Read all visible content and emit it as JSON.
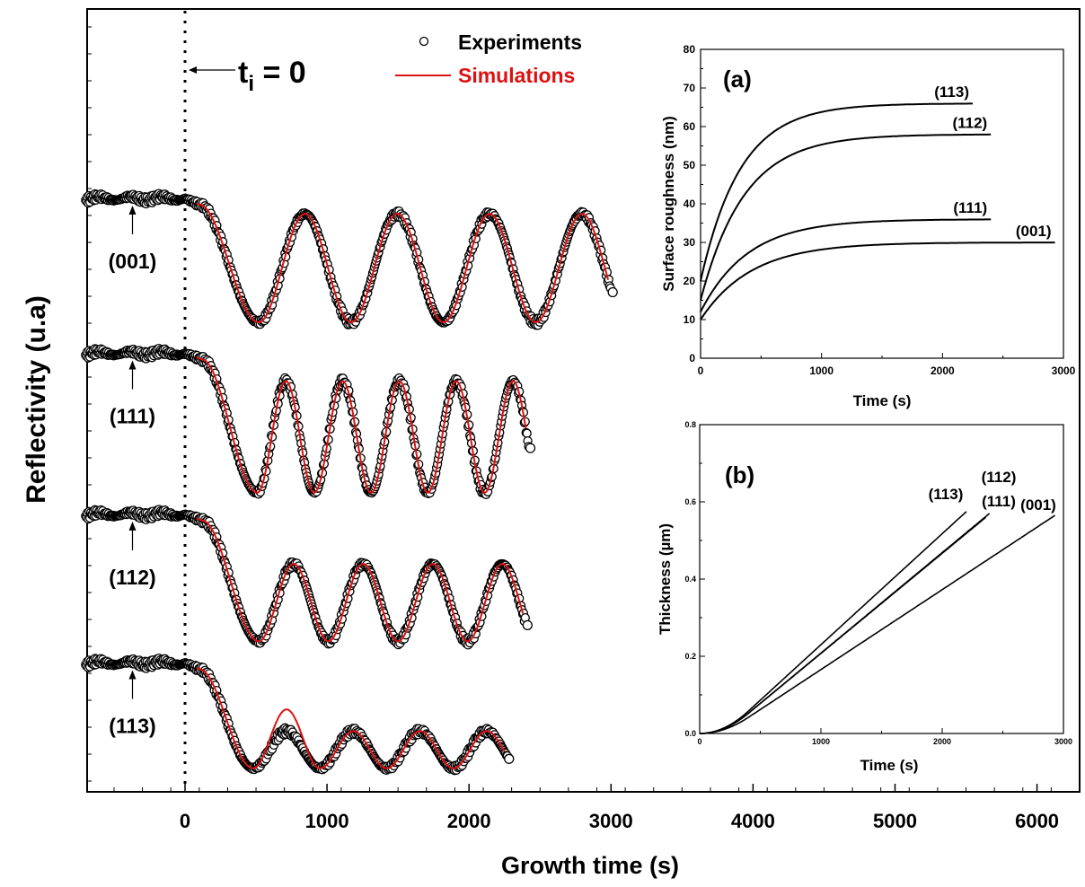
{
  "chart_data": [
    {
      "type": "line",
      "xlabel": "Growth time (s)",
      "ylabel": "Reflectivity (u.a)",
      "xlim": [
        -700,
        6300
      ],
      "xticks": [
        0,
        1000,
        2000,
        3000,
        4000,
        5000,
        6000
      ],
      "yticks_labeled": false,
      "legend": {
        "placement": "top-center",
        "entries": [
          {
            "label": "Experiments",
            "marker": "open-circle",
            "color": "#000000"
          },
          {
            "label": "Simulations",
            "marker": "line",
            "color": "#dd1111"
          }
        ]
      },
      "annotation": {
        "text_main": "t",
        "text_sub": "i",
        "text_rest": " = 0",
        "x": 0
      },
      "series": [
        {
          "label": "(001)",
          "baseline": 0.9,
          "min": 0.7,
          "max": 0.875,
          "start_x": 100,
          "first_min_x": 520,
          "period": 650,
          "end_x": 3000
        },
        {
          "label": "(111)",
          "baseline": 0.65,
          "min": 0.425,
          "max": 0.605,
          "start_x": 120,
          "first_min_x": 510,
          "period": 400,
          "end_x": 2420
        },
        {
          "label": "(112)",
          "baseline": 0.39,
          "min": 0.185,
          "max": 0.31,
          "start_x": 120,
          "first_min_x": 520,
          "period": 490,
          "end_x": 2400
        },
        {
          "label": "(113)",
          "baseline": 0.15,
          "min": -0.02,
          "max": 0.04,
          "start_x": 100,
          "first_min_x": 480,
          "period": 470,
          "end_x": 2270,
          "sim_first_max": 0.075
        }
      ]
    },
    {
      "type": "line",
      "panel": "(a)",
      "xlabel": "Time (s)",
      "ylabel": "Surface roughness (nm)",
      "xlim": [
        0,
        3000
      ],
      "ylim": [
        0,
        80
      ],
      "xticks": [
        0,
        1000,
        2000,
        3000
      ],
      "yticks": [
        0,
        10,
        20,
        30,
        40,
        50,
        60,
        70,
        80
      ],
      "series": [
        {
          "label": "(113)",
          "start": 20,
          "plateau": 66,
          "tau": 330,
          "end_x": 2250
        },
        {
          "label": "(112)",
          "start": 15,
          "plateau": 58,
          "tau": 360,
          "end_x": 2400
        },
        {
          "label": "(111)",
          "start": 12,
          "plateau": 36,
          "tau": 390,
          "end_x": 2400
        },
        {
          "label": "(001)",
          "start": 10,
          "plateau": 30,
          "tau": 420,
          "end_x": 2930
        }
      ]
    },
    {
      "type": "line",
      "panel": "(b)",
      "xlabel": "Time (s)",
      "ylabel": "Thickness (µm)",
      "xlim": [
        0,
        3000
      ],
      "ylim": [
        0,
        0.8
      ],
      "xticks": [
        0,
        1000,
        2000,
        3000
      ],
      "yticks": [
        0.0,
        0.2,
        0.4,
        0.6,
        0.8
      ],
      "series": [
        {
          "label": "(113)",
          "end_x": 2200,
          "end_y": 0.575
        },
        {
          "label": "(112)",
          "end_x": 2390,
          "end_y": 0.57
        },
        {
          "label": "(111)",
          "end_x": 2360,
          "end_y": 0.56
        },
        {
          "label": "(001)",
          "end_x": 2930,
          "end_y": 0.565
        }
      ]
    }
  ]
}
